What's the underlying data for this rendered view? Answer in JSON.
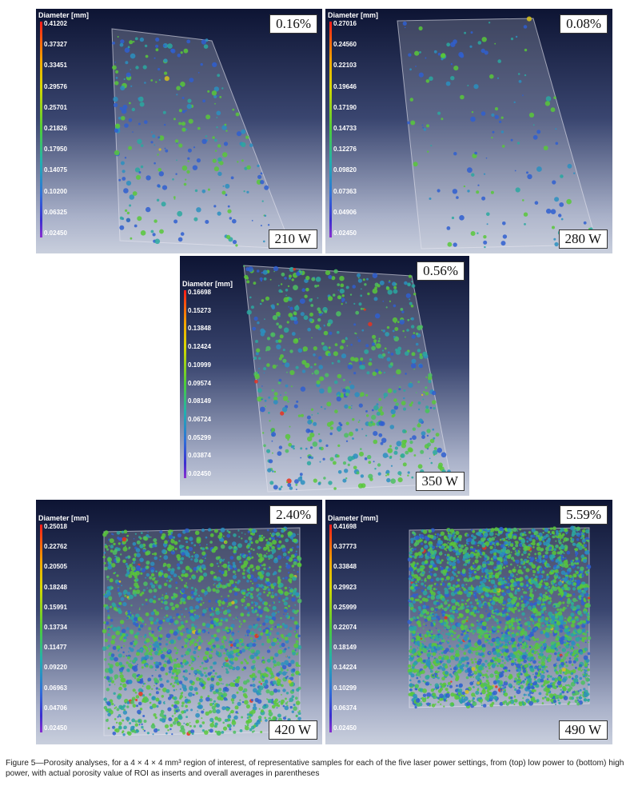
{
  "panels": [
    {
      "id": "p210",
      "porosity": "0.16%",
      "power": "210 W",
      "legend_title": "Diameter [mm]",
      "ticks": [
        "0.41202",
        "0.37327",
        "0.33451",
        "0.29576",
        "0.25701",
        "0.21826",
        "0.17950",
        "0.14075",
        "0.10200",
        "0.06325",
        "0.02450"
      ],
      "density": "low"
    },
    {
      "id": "p280",
      "porosity": "0.08%",
      "power": "280 W",
      "legend_title": "Diameter [mm]",
      "ticks": [
        "0.27016",
        "0.24560",
        "0.22103",
        "0.19646",
        "0.17190",
        "0.14733",
        "0.12276",
        "0.09820",
        "0.07363",
        "0.04906",
        "0.02450"
      ],
      "density": "very low"
    },
    {
      "id": "p350",
      "porosity": "0.56%",
      "power": "350 W",
      "legend_title": "Diameter [mm]",
      "ticks": [
        "0.16698",
        "0.15273",
        "0.13848",
        "0.12424",
        "0.10999",
        "0.09574",
        "0.08149",
        "0.06724",
        "0.05299",
        "0.03874",
        "0.02450"
      ],
      "density": "medium"
    },
    {
      "id": "p420",
      "porosity": "2.40%",
      "power": "420 W",
      "legend_title": "Diameter [mm]",
      "ticks": [
        "0.25018",
        "0.22762",
        "0.20505",
        "0.18248",
        "0.15991",
        "0.13734",
        "0.11477",
        "0.09220",
        "0.06963",
        "0.04706",
        "0.02450"
      ],
      "density": "high"
    },
    {
      "id": "p490",
      "porosity": "5.59%",
      "power": "490 W",
      "legend_title": "Diameter [mm]",
      "ticks": [
        "0.41698",
        "0.37773",
        "0.33848",
        "0.29923",
        "0.25999",
        "0.22074",
        "0.18149",
        "0.14224",
        "0.10299",
        "0.06374",
        "0.02450"
      ],
      "density": "very high"
    }
  ],
  "caption": "Figure 5—Porosity analyses, for a 4 × 4 × 4 mm³ region of interest, of representative samples for each of the five laser power settings, from (top) low power to (bottom) high power, with actual porosity value of ROI as inserts and overall averages in parentheses",
  "colors": {
    "high": "#e8321e",
    "mid_high": "#d8c21a",
    "mid": "#58c83a",
    "low_mid": "#2aa8a0",
    "low": "#2f5fd0"
  }
}
